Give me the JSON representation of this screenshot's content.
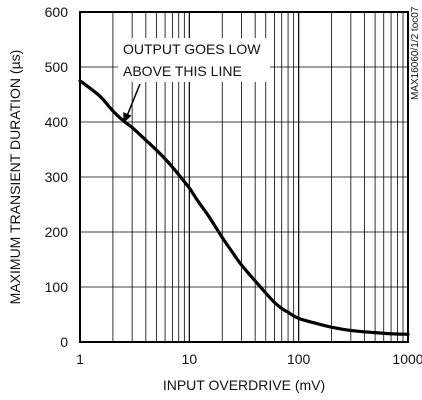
{
  "chart_data": {
    "type": "line",
    "xlabel": "INPUT OVERDRIVE (mV)",
    "ylabel": "MAXIMUM TRANSIENT DURATION (µs)",
    "xscale": "log",
    "xlim": [
      1,
      1000
    ],
    "ylim": [
      0,
      600
    ],
    "x_ticks": [
      1,
      10,
      100,
      1000
    ],
    "x_tick_labels": [
      "1",
      "10",
      "100",
      "1000"
    ],
    "y_ticks": [
      0,
      100,
      200,
      300,
      400,
      500,
      600
    ],
    "y_tick_labels": [
      "0",
      "100",
      "200",
      "300",
      "400",
      "500",
      "600"
    ],
    "grid": true,
    "part_number": "MAX16060/1/2 toc07",
    "annotation": {
      "lines": [
        "OUTPUT GOES LOW",
        "ABOVE THIS LINE"
      ],
      "arrow_target": {
        "x": 2.5,
        "y": 398
      }
    },
    "series": [
      {
        "color": "#000000",
        "x": [
          1,
          1.5,
          2,
          2.5,
          3,
          4,
          5,
          6,
          7,
          8,
          10,
          12,
          15,
          20,
          25,
          30,
          40,
          50,
          60,
          70,
          80,
          100,
          150,
          200,
          300,
          500,
          700,
          1000
        ],
        "y": [
          475,
          448,
          420,
          402,
          390,
          367,
          349,
          333,
          318,
          304,
          280,
          256,
          229,
          190,
          162,
          140,
          111,
          89,
          72,
          61,
          54,
          43,
          33,
          27,
          21,
          17,
          15,
          14
        ]
      }
    ]
  }
}
